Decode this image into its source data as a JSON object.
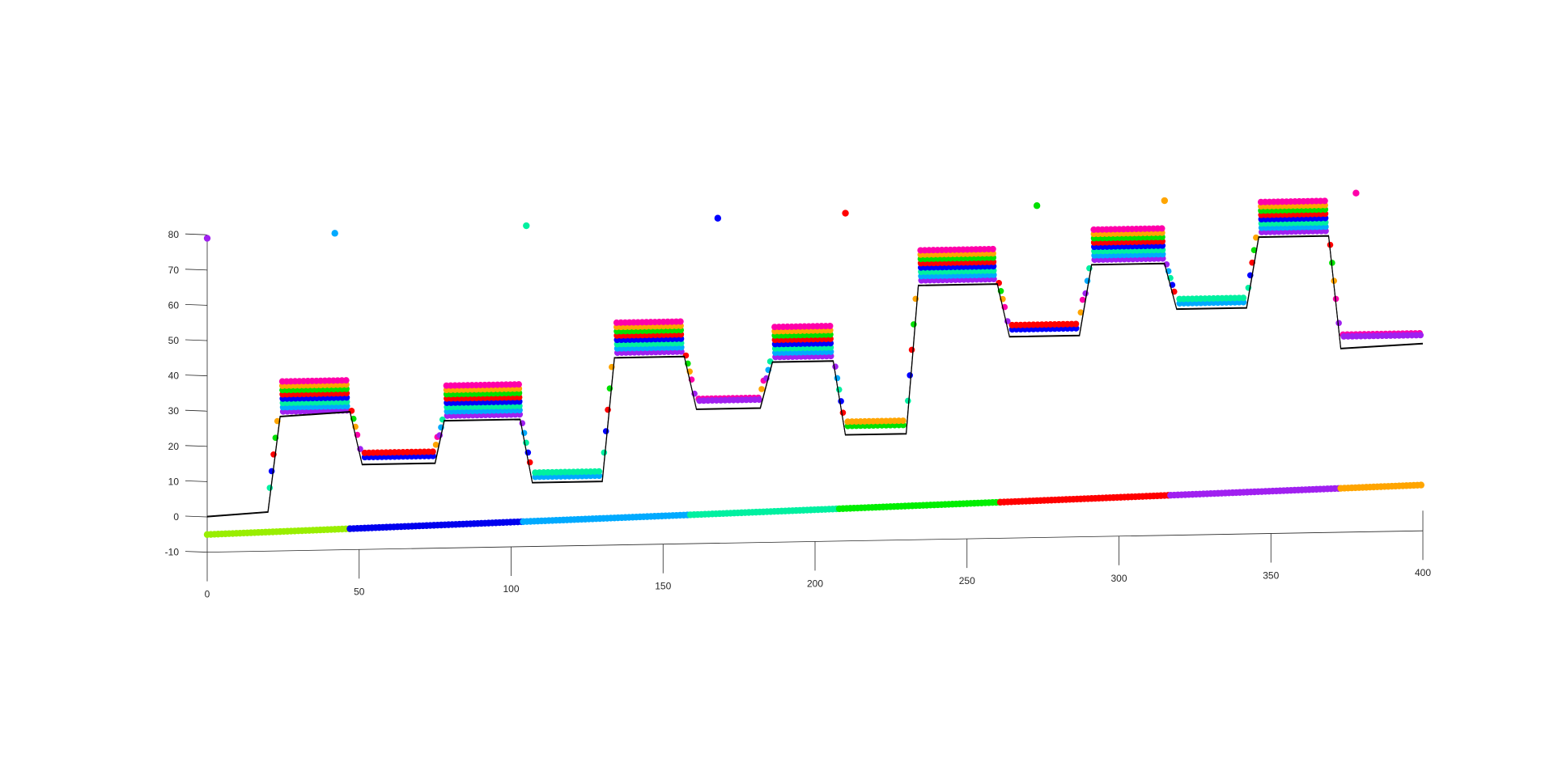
{
  "chart_data": {
    "type": "scatter",
    "title": "",
    "xlabel": "",
    "ylabel": "",
    "xlim": [
      0,
      400
    ],
    "ylim": [
      -10,
      80
    ],
    "grid": false,
    "legend": "none",
    "x_ticks": [
      0,
      50,
      100,
      150,
      200,
      250,
      300,
      350,
      400
    ],
    "y_ticks": [
      -10,
      0,
      10,
      20,
      30,
      40,
      50,
      60,
      70,
      80
    ],
    "reference_profile": {
      "color": "#000000",
      "points": [
        [
          0,
          0
        ],
        [
          20,
          1
        ],
        [
          24,
          28
        ],
        [
          47,
          29
        ],
        [
          51,
          14
        ],
        [
          75,
          14
        ],
        [
          78,
          26
        ],
        [
          103,
          26
        ],
        [
          107,
          8
        ],
        [
          130,
          8
        ],
        [
          134,
          43
        ],
        [
          157,
          43
        ],
        [
          161,
          28
        ],
        [
          182,
          28
        ],
        [
          186,
          41
        ],
        [
          206,
          41
        ],
        [
          210,
          20
        ],
        [
          230,
          20
        ],
        [
          234,
          62
        ],
        [
          260,
          62
        ],
        [
          264,
          47
        ],
        [
          287,
          47
        ],
        [
          291,
          67
        ],
        [
          315,
          67
        ],
        [
          319,
          54
        ],
        [
          342,
          54
        ],
        [
          346,
          74
        ],
        [
          369,
          74
        ],
        [
          373,
          42
        ],
        [
          400,
          43
        ]
      ]
    },
    "rows": [
      {
        "color": "#a020f0",
        "marker_x": 0
      },
      {
        "color": "#00aaff",
        "marker_x": 42
      },
      {
        "color": "#00f0a0",
        "marker_x": 105
      },
      {
        "color": "#0000ff",
        "marker_x": 168
      },
      {
        "color": "#ff0000",
        "marker_x": 210
      },
      {
        "color": "#00e000",
        "marker_x": 273
      },
      {
        "color": "#ffa500",
        "marker_x": 315
      },
      {
        "color": "#ff00aa",
        "marker_x": 378
      }
    ],
    "time_bar": [
      {
        "from": 0,
        "to": 47,
        "color": "#99ee00"
      },
      {
        "from": 47,
        "to": 104,
        "color": "#0000ee"
      },
      {
        "from": 104,
        "to": 159,
        "color": "#00aaff"
      },
      {
        "from": 159,
        "to": 208,
        "color": "#00f0a0"
      },
      {
        "from": 208,
        "to": 261,
        "color": "#00ee00"
      },
      {
        "from": 261,
        "to": 317,
        "color": "#ff0000"
      },
      {
        "from": 317,
        "to": 373,
        "color": "#a020f0"
      },
      {
        "from": 373,
        "to": 400,
        "color": "#ffa500"
      }
    ],
    "plateau_segments": [
      {
        "from": 25,
        "to": 47,
        "level": 28
      },
      {
        "from": 52,
        "to": 75,
        "level": 14
      },
      {
        "from": 79,
        "to": 103,
        "level": 26
      },
      {
        "from": 108,
        "to": 130,
        "level": 8
      },
      {
        "from": 135,
        "to": 157,
        "level": 43
      },
      {
        "from": 162,
        "to": 182,
        "level": 28
      },
      {
        "from": 187,
        "to": 206,
        "level": 41
      },
      {
        "from": 211,
        "to": 230,
        "level": 20
      },
      {
        "from": 235,
        "to": 260,
        "level": 62
      },
      {
        "from": 265,
        "to": 287,
        "level": 47
      },
      {
        "from": 292,
        "to": 315,
        "level": 67
      },
      {
        "from": 320,
        "to": 342,
        "level": 54
      },
      {
        "from": 347,
        "to": 369,
        "level": 74
      },
      {
        "from": 374,
        "to": 400,
        "level": 43
      }
    ],
    "colors": {
      "axis": "#262626",
      "profile": "#000000"
    }
  }
}
